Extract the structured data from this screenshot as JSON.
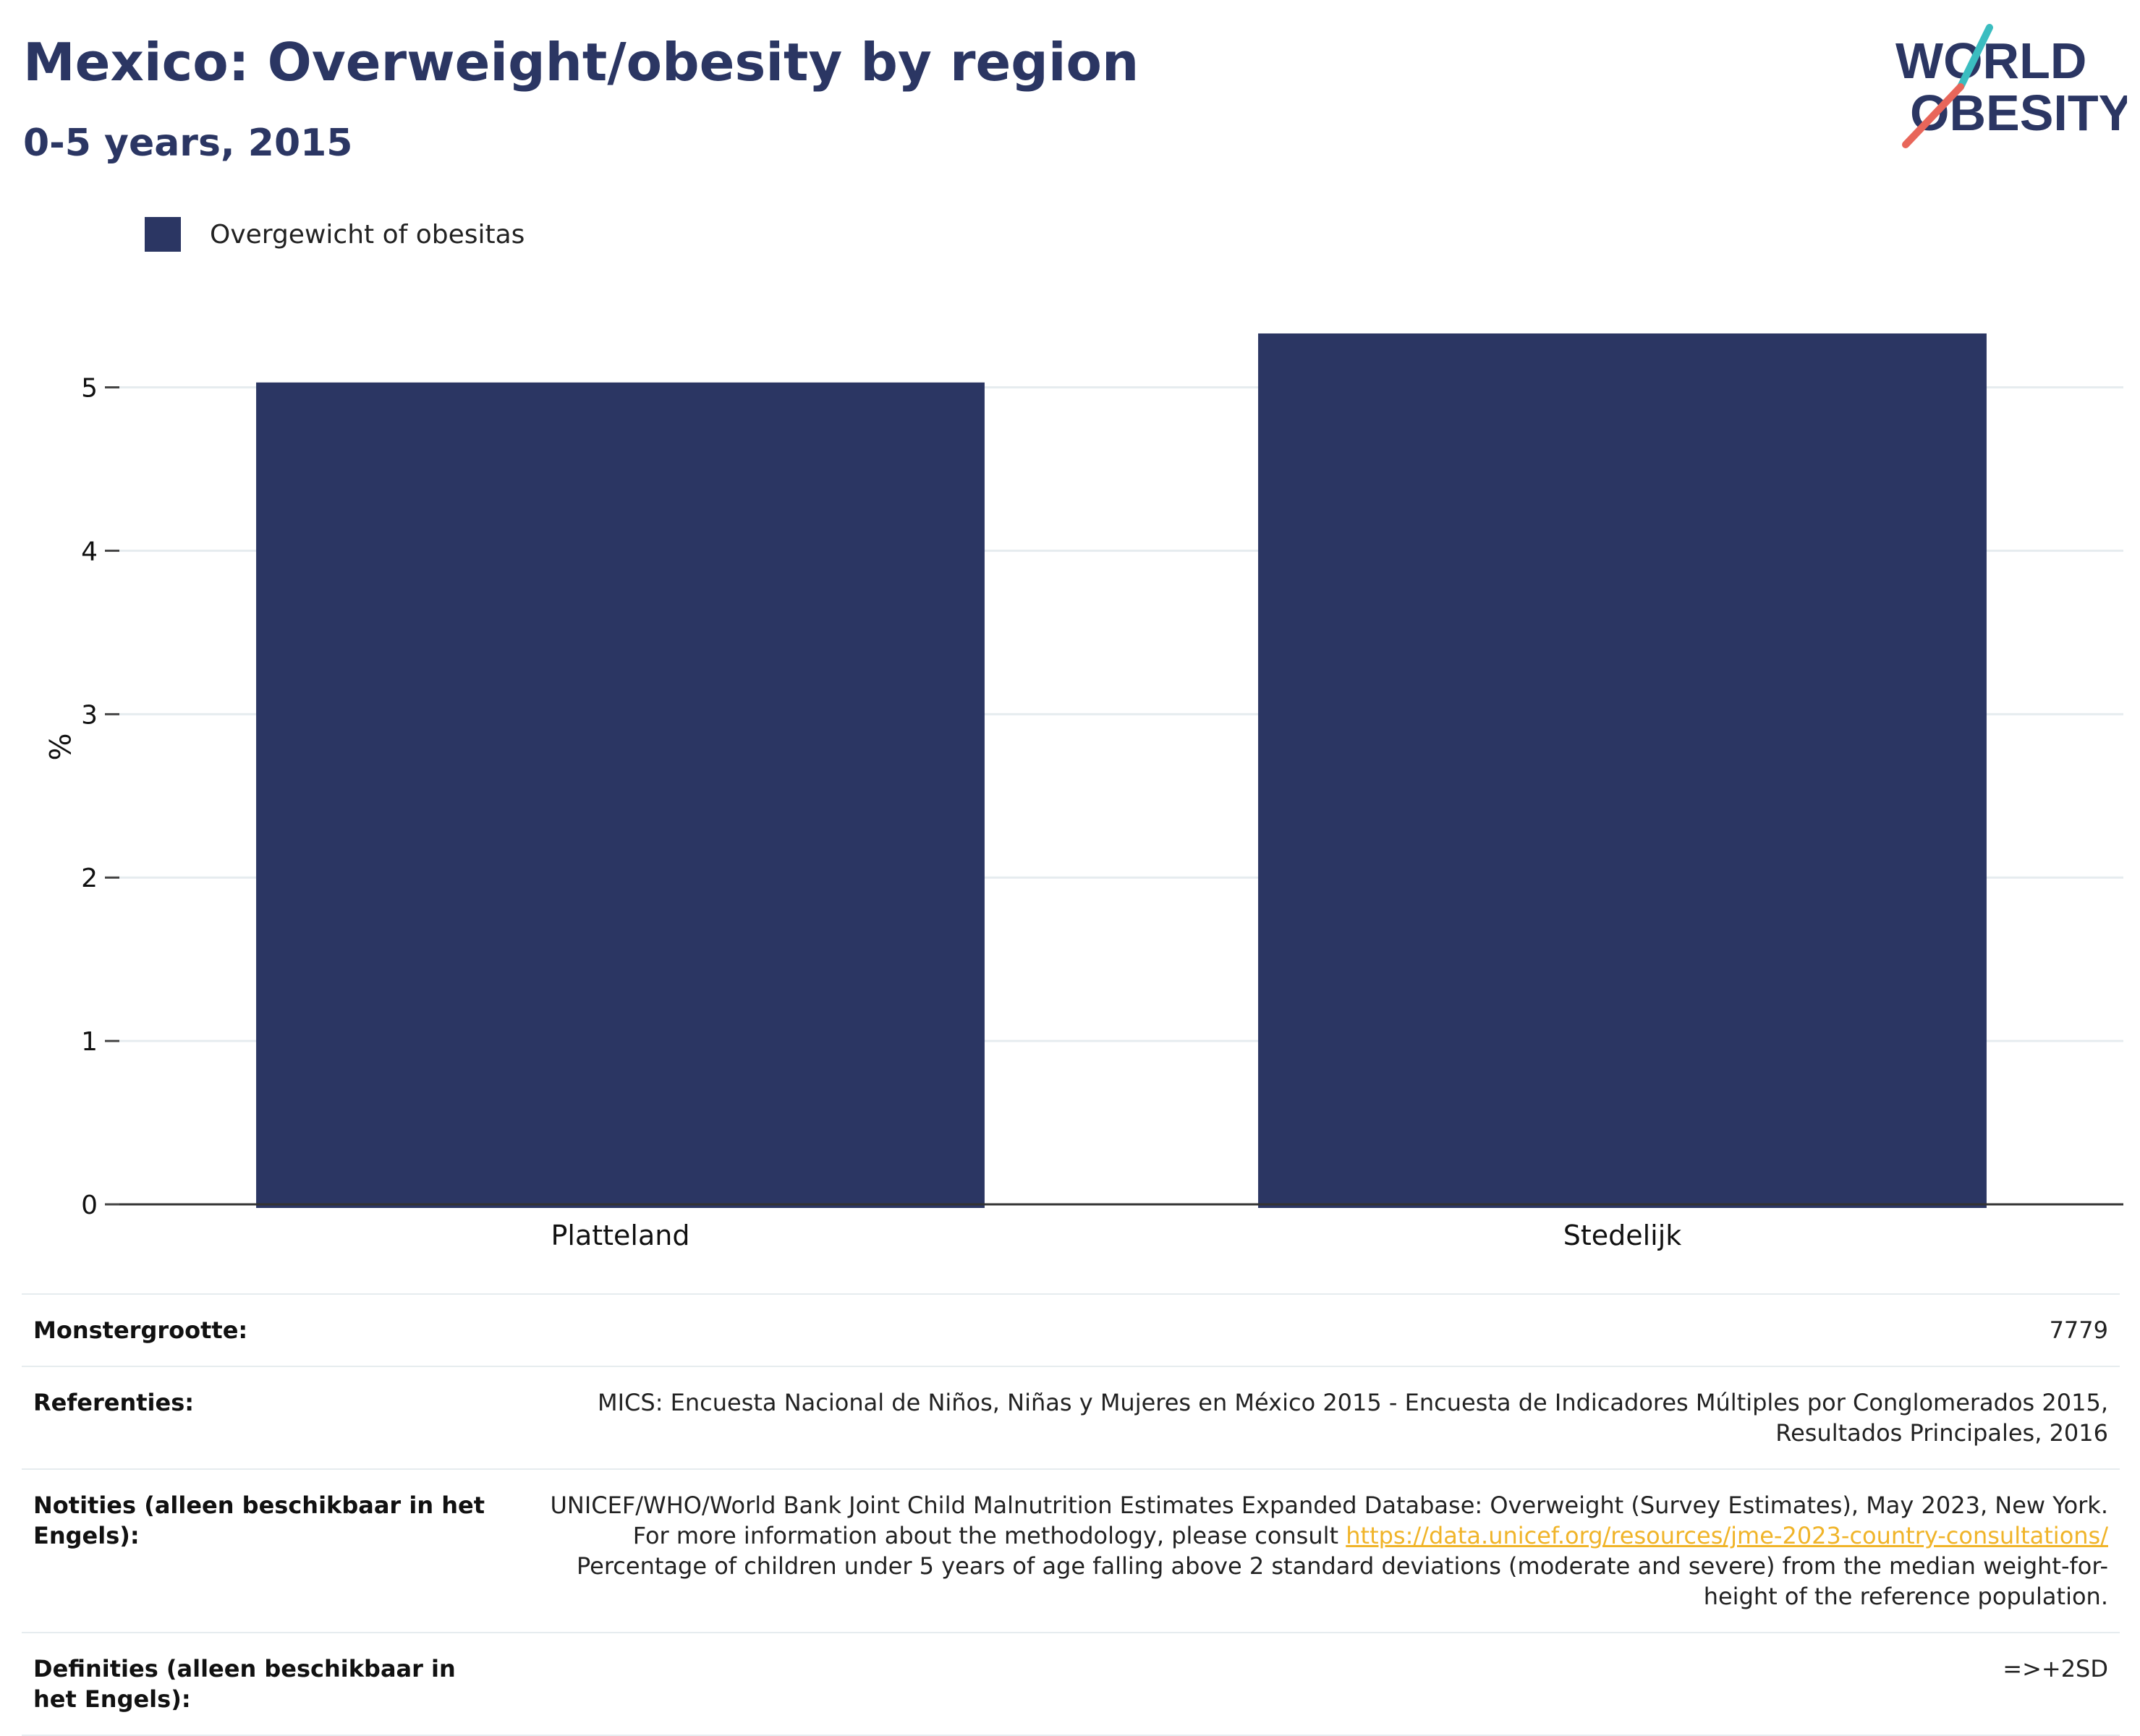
{
  "header": {
    "title": "Mexico: Overweight/obesity by region",
    "subtitle": "0-5 years, 2015"
  },
  "logo": {
    "line1": "WORLD",
    "line2": "OBESITY",
    "colors": {
      "text": "#2b3663",
      "slash_top": "#3bbdc0",
      "slash_bottom": "#e8665a"
    }
  },
  "legend": {
    "label": "Overgewicht of obesitas",
    "color": "#2b3663"
  },
  "chart_data": {
    "type": "bar",
    "title": "Mexico: Overweight/obesity by region",
    "subtitle": "0-5 years, 2015",
    "categories": [
      "Platteland",
      "Stedelijk"
    ],
    "series": [
      {
        "name": "Overgewicht of obesitas",
        "values": [
          5.03,
          5.33
        ],
        "color": "#2b3663"
      }
    ],
    "xlabel": "",
    "ylabel": "%",
    "ylim": [
      0,
      5.6
    ],
    "yticks": [
      0,
      1,
      2,
      3,
      4,
      5
    ],
    "grid": true,
    "legend_position": "top-left"
  },
  "info": {
    "sample_size": {
      "label": "Monstergrootte:",
      "value": "7779"
    },
    "references": {
      "label": "Referenties:",
      "value": "MICS: Encuesta Nacional de Niños, Niñas y Mujeres en México 2015 - Encuesta de Indicadores Múltiples por Conglomerados 2015, Resultados Principales, 2016"
    },
    "notes": {
      "label": "Notities (alleen beschikbaar in het Engels):",
      "text_before": "UNICEF/WHO/World Bank Joint Child Malnutrition Estimates Expanded Database: Overweight (Survey Estimates), May 2023, New York. For more information about the methodology, please consult ",
      "link": "https://data.unicef.org/resources/jme-2023-country-consultations/",
      "text_after": " Percentage of children under 5 years of age falling above 2 standard deviations (moderate and severe) from the median weight-for-height of the reference population."
    },
    "definitions": {
      "label": "Definities (alleen beschikbaar in het Engels):",
      "value": "=>+2SD"
    }
  }
}
